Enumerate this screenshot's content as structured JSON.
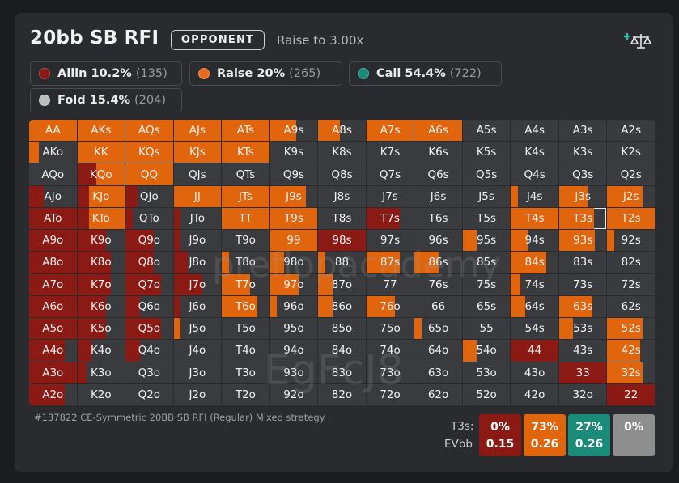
{
  "header": {
    "title": "20bb SB RFI",
    "opponent_label": "OPPONENT",
    "raise_text": "Raise to 3.00x"
  },
  "legend": [
    {
      "name": "allin",
      "label": "Allin 10.2%",
      "count": "(135)",
      "color": "#8b1a14"
    },
    {
      "name": "raise",
      "label": "Raise 20%",
      "count": "(265)",
      "color": "#e8691a"
    },
    {
      "name": "call",
      "label": "Call 54.4%",
      "count": "(722)",
      "color": "#1a8a79"
    },
    {
      "name": "fold",
      "label": "Fold 15.4%",
      "count": "(204)",
      "color": "#bdbdbd"
    }
  ],
  "colors": {
    "allin": "#8b1a14",
    "raise": "#e0650d",
    "call": "#1a8a79",
    "empty": "#3a3b3e"
  },
  "grid": {
    "rows": [
      [
        "AA",
        "AKs",
        "AQs",
        "AJs",
        "ATs",
        "A9s",
        "A8s",
        "A7s",
        "A6s",
        "A5s",
        "A4s",
        "A3s",
        "A2s"
      ],
      [
        "AKo",
        "KK",
        "KQs",
        "KJs",
        "KTs",
        "K9s",
        "K8s",
        "K7s",
        "K6s",
        "K5s",
        "K4s",
        "K3s",
        "K2s"
      ],
      [
        "AQo",
        "KQo",
        "QQ",
        "QJs",
        "QTs",
        "Q9s",
        "Q8s",
        "Q7s",
        "Q6s",
        "Q5s",
        "Q4s",
        "Q3s",
        "Q2s"
      ],
      [
        "AJo",
        "KJo",
        "QJo",
        "JJ",
        "JTs",
        "J9s",
        "J8s",
        "J7s",
        "J6s",
        "J5s",
        "J4s",
        "J3s",
        "J2s"
      ],
      [
        "ATo",
        "KTo",
        "QTo",
        "JTo",
        "TT",
        "T9s",
        "T8s",
        "T7s",
        "T6s",
        "T5s",
        "T4s",
        "T3s",
        "T2s"
      ],
      [
        "A9o",
        "K9o",
        "Q9o",
        "J9o",
        "T9o",
        "99",
        "98s",
        "97s",
        "96s",
        "95s",
        "94s",
        "93s",
        "92s"
      ],
      [
        "A8o",
        "K8o",
        "Q8o",
        "J8o",
        "T8o",
        "98o",
        "88",
        "87s",
        "86s",
        "85s",
        "84s",
        "83s",
        "82s"
      ],
      [
        "A7o",
        "K7o",
        "Q7o",
        "J7o",
        "T7o",
        "97o",
        "87o",
        "77",
        "76s",
        "75s",
        "74s",
        "73s",
        "72s"
      ],
      [
        "A6o",
        "K6o",
        "Q6o",
        "J6o",
        "T6o",
        "96o",
        "86o",
        "76o",
        "66",
        "65s",
        "64s",
        "63s",
        "62s"
      ],
      [
        "A5o",
        "K5o",
        "Q5o",
        "J5o",
        "T5o",
        "95o",
        "85o",
        "75o",
        "65o",
        "55",
        "54s",
        "53s",
        "52s"
      ],
      [
        "A4o",
        "K4o",
        "Q4o",
        "J4o",
        "T4o",
        "94o",
        "84o",
        "74o",
        "64o",
        "54o",
        "44",
        "43s",
        "42s"
      ],
      [
        "A3o",
        "K3o",
        "Q3o",
        "J3o",
        "T3o",
        "93o",
        "83o",
        "73o",
        "63o",
        "53o",
        "43o",
        "33",
        "32s"
      ],
      [
        "A2o",
        "K2o",
        "Q2o",
        "J2o",
        "T2o",
        "92o",
        "82o",
        "72o",
        "62o",
        "52o",
        "42o",
        "32o",
        "22"
      ]
    ],
    "selected_hand": "T3s"
  },
  "watermarks": {
    "site": "preflopacademy",
    "code": "EgFcJ8"
  },
  "footer": {
    "description": "#137822 CE-Symmetric 20BB SB RFI (Regular) Mixed strategy",
    "hand_label": "T3s:",
    "ev_label": "EVbb",
    "boxes": [
      {
        "name": "allin",
        "pct": "0%",
        "ev": "0.15",
        "color": "#8b1a14"
      },
      {
        "name": "raise",
        "pct": "73%",
        "ev": "0.26",
        "color": "#e0650d"
      },
      {
        "name": "call",
        "pct": "27%",
        "ev": "0.26",
        "color": "#1a8a79"
      },
      {
        "name": "fold",
        "pct": "0%",
        "ev": "",
        "color": "#8e8e8e"
      }
    ]
  }
}
